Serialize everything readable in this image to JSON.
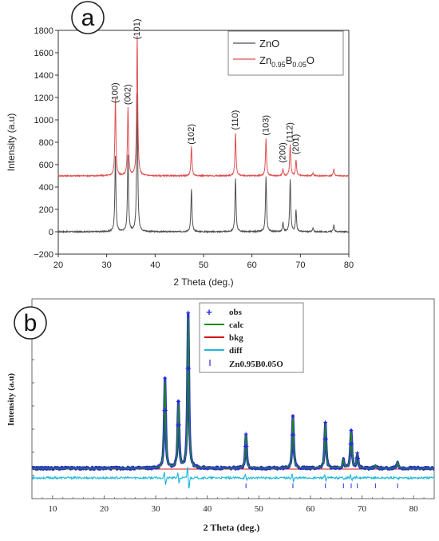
{
  "panel_a": {
    "badge": "a",
    "xlabel": "2 Theta (deg.)",
    "ylabel": "Intensity (a.u)",
    "legend": [
      {
        "base": "ZnO",
        "sub1": "",
        "mid": "",
        "sub2": "",
        "tail": ""
      },
      {
        "base": "Zn",
        "sub1": "0.95",
        "mid": "B",
        "sub2": "0.05",
        "tail": "O"
      }
    ],
    "peak_labels": [
      {
        "text": "(100)",
        "x": 31.8,
        "y": 1150
      },
      {
        "text": "(002)",
        "x": 34.4,
        "y": 1135
      },
      {
        "text": "(101)",
        "x": 36.3,
        "y": 1720
      },
      {
        "text": "(102)",
        "x": 47.5,
        "y": 780
      },
      {
        "text": "(110)",
        "x": 56.6,
        "y": 910
      },
      {
        "text": "(103)",
        "x": 62.9,
        "y": 860
      },
      {
        "text": "(200)",
        "x": 66.4,
        "y": 615
      },
      {
        "text": "(112)",
        "x": 67.9,
        "y": 800
      },
      {
        "text": "(201)",
        "x": 69.1,
        "y": 690
      }
    ]
  },
  "panel_b": {
    "badge": "b",
    "xlabel": "2 Theta (deg.)",
    "ylabel": "Intensity (a.u)",
    "legend": [
      {
        "symbol": "+",
        "label": "obs",
        "color": "#2a2ad8"
      },
      {
        "symbol": "line",
        "label": "calc",
        "color": "#1f8a1f"
      },
      {
        "symbol": "line",
        "label": "bkg",
        "color": "#d01818"
      },
      {
        "symbol": "line",
        "label": "diff",
        "color": "#20b8d8"
      },
      {
        "symbol": "|",
        "label": "Zn0.95B0.05O",
        "color": "#2a2ad8"
      }
    ]
  },
  "chart_data": [
    {
      "type": "line",
      "title": "",
      "xlabel": "2 Theta (deg.)",
      "ylabel": "Intensity (a.u)",
      "xlim": [
        20,
        80
      ],
      "ylim": [
        -200,
        1800
      ],
      "xticks": [
        20,
        30,
        40,
        50,
        60,
        70,
        80
      ],
      "yticks": [
        -200,
        0,
        200,
        400,
        600,
        800,
        1000,
        1200,
        1400,
        1600,
        1800
      ],
      "legend_position": "top-right",
      "series": [
        {
          "name": "ZnO",
          "color": "#505050",
          "baseline": 0,
          "peaks": [
            {
              "x": 31.8,
              "y": 680
            },
            {
              "x": 34.4,
              "y": 680
            },
            {
              "x": 36.3,
              "y": 1230
            },
            {
              "x": 47.5,
              "y": 380
            },
            {
              "x": 56.6,
              "y": 480
            },
            {
              "x": 62.9,
              "y": 490
            },
            {
              "x": 66.4,
              "y": 80
            },
            {
              "x": 67.9,
              "y": 470
            },
            {
              "x": 69.1,
              "y": 190
            },
            {
              "x": 72.6,
              "y": 30
            },
            {
              "x": 76.9,
              "y": 60
            }
          ]
        },
        {
          "name": "Zn0.95B0.05O",
          "color": "#e05050",
          "baseline": 500,
          "peaks": [
            {
              "x": 31.8,
              "y": 1190
            },
            {
              "x": 34.4,
              "y": 1110
            },
            {
              "x": 36.3,
              "y": 1750
            },
            {
              "x": 47.5,
              "y": 760
            },
            {
              "x": 56.6,
              "y": 880
            },
            {
              "x": 62.9,
              "y": 830
            },
            {
              "x": 66.4,
              "y": 560
            },
            {
              "x": 67.9,
              "y": 780
            },
            {
              "x": 69.1,
              "y": 640
            },
            {
              "x": 72.6,
              "y": 525
            },
            {
              "x": 76.9,
              "y": 560
            }
          ]
        }
      ]
    },
    {
      "type": "line",
      "title": "",
      "xlabel": "2 Theta (deg.)",
      "ylabel": "Intensity (a.u)",
      "xlim": [
        6,
        84
      ],
      "ylim": [
        -10,
        100
      ],
      "xticks": [
        10,
        20,
        30,
        40,
        50,
        60,
        70,
        80
      ],
      "yticks_labeled": false,
      "legend_position": "top-center",
      "peaks": [
        {
          "x": 31.8,
          "y": 55
        },
        {
          "x": 34.4,
          "y": 40
        },
        {
          "x": 36.3,
          "y": 95
        },
        {
          "x": 47.5,
          "y": 21
        },
        {
          "x": 56.6,
          "y": 32
        },
        {
          "x": 62.9,
          "y": 28
        },
        {
          "x": 66.4,
          "y": 5
        },
        {
          "x": 67.9,
          "y": 23
        },
        {
          "x": 69.1,
          "y": 9
        },
        {
          "x": 72.6,
          "y": 2
        },
        {
          "x": 76.9,
          "y": 4
        }
      ],
      "reflection_ticks": [
        47.5,
        56.6,
        62.9,
        66.4,
        67.9,
        69.1,
        72.6,
        76.9
      ],
      "series": [
        {
          "name": "obs",
          "color": "#2a2ad8"
        },
        {
          "name": "calc",
          "color": "#1f8a1f"
        },
        {
          "name": "bkg",
          "color": "#d01818"
        },
        {
          "name": "diff",
          "color": "#20b8d8"
        },
        {
          "name": "Zn0.95B0.05O",
          "color": "#2a2ad8"
        }
      ]
    }
  ]
}
